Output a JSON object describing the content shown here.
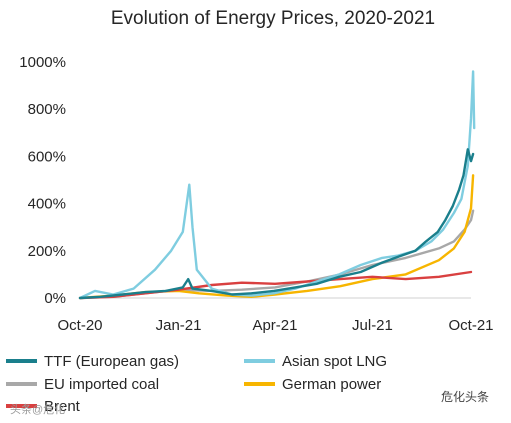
{
  "chart_data": {
    "type": "line",
    "title": "Evolution of Energy Prices, 2020-2021",
    "xlabel": "",
    "ylabel": "",
    "x_ticks": [
      "Oct-20",
      "Jan-21",
      "Apr-21",
      "Jul-21",
      "Oct-21"
    ],
    "y_ticks": [
      "0%",
      "200%",
      "400%",
      "600%",
      "800%",
      "1000%"
    ],
    "ylim": [
      0,
      1000
    ],
    "grid": false,
    "legend_position": "bottom",
    "series": [
      {
        "name": "TTF (European gas)",
        "color": "#1a7f8c",
        "points": [
          [
            "2020-10-01",
            0
          ],
          [
            "2020-10-20",
            5
          ],
          [
            "2020-11-10",
            15
          ],
          [
            "2020-12-01",
            25
          ],
          [
            "2020-12-20",
            30
          ],
          [
            "2021-01-05",
            45
          ],
          [
            "2021-01-10",
            80
          ],
          [
            "2021-01-14",
            40
          ],
          [
            "2021-02-01",
            30
          ],
          [
            "2021-02-20",
            15
          ],
          [
            "2021-03-10",
            20
          ],
          [
            "2021-03-31",
            30
          ],
          [
            "2021-04-20",
            45
          ],
          [
            "2021-05-10",
            60
          ],
          [
            "2021-05-31",
            90
          ],
          [
            "2021-06-20",
            110
          ],
          [
            "2021-07-10",
            150
          ],
          [
            "2021-07-25",
            175
          ],
          [
            "2021-08-10",
            200
          ],
          [
            "2021-08-20",
            240
          ],
          [
            "2021-08-31",
            280
          ],
          [
            "2021-09-07",
            330
          ],
          [
            "2021-09-14",
            390
          ],
          [
            "2021-09-20",
            460
          ],
          [
            "2021-09-24",
            520
          ],
          [
            "2021-09-28",
            630
          ],
          [
            "2021-10-01",
            580
          ],
          [
            "2021-10-03",
            610
          ]
        ]
      },
      {
        "name": "Asian spot LNG",
        "color": "#7fcde0",
        "points": [
          [
            "2020-10-01",
            0
          ],
          [
            "2020-10-15",
            30
          ],
          [
            "2020-11-01",
            15
          ],
          [
            "2020-11-20",
            40
          ],
          [
            "2020-12-10",
            120
          ],
          [
            "2020-12-25",
            200
          ],
          [
            "2021-01-05",
            280
          ],
          [
            "2021-01-11",
            480
          ],
          [
            "2021-01-14",
            300
          ],
          [
            "2021-01-18",
            120
          ],
          [
            "2021-02-01",
            40
          ],
          [
            "2021-02-20",
            15
          ],
          [
            "2021-03-10",
            10
          ],
          [
            "2021-03-31",
            20
          ],
          [
            "2021-04-20",
            40
          ],
          [
            "2021-05-10",
            70
          ],
          [
            "2021-05-31",
            100
          ],
          [
            "2021-06-20",
            140
          ],
          [
            "2021-07-10",
            170
          ],
          [
            "2021-07-25",
            180
          ],
          [
            "2021-08-10",
            200
          ],
          [
            "2021-08-25",
            240
          ],
          [
            "2021-09-05",
            290
          ],
          [
            "2021-09-15",
            360
          ],
          [
            "2021-09-22",
            420
          ],
          [
            "2021-09-28",
            560
          ],
          [
            "2021-10-01",
            760
          ],
          [
            "2021-10-03",
            960
          ],
          [
            "2021-10-04",
            720
          ]
        ]
      },
      {
        "name": "EU imported coal",
        "color": "#a8a8a8",
        "points": [
          [
            "2020-10-01",
            0
          ],
          [
            "2020-11-01",
            5
          ],
          [
            "2020-12-01",
            20
          ],
          [
            "2021-01-01",
            35
          ],
          [
            "2021-02-01",
            30
          ],
          [
            "2021-03-01",
            35
          ],
          [
            "2021-04-01",
            45
          ],
          [
            "2021-05-01",
            70
          ],
          [
            "2021-06-01",
            100
          ],
          [
            "2021-07-01",
            140
          ],
          [
            "2021-08-01",
            170
          ],
          [
            "2021-09-01",
            210
          ],
          [
            "2021-09-15",
            240
          ],
          [
            "2021-09-25",
            290
          ],
          [
            "2021-10-01",
            330
          ],
          [
            "2021-10-03",
            370
          ]
        ]
      },
      {
        "name": "German power",
        "color": "#f7b500",
        "points": [
          [
            "2020-10-01",
            0
          ],
          [
            "2020-11-01",
            10
          ],
          [
            "2020-12-01",
            25
          ],
          [
            "2021-01-01",
            30
          ],
          [
            "2021-01-20",
            20
          ],
          [
            "2021-02-15",
            10
          ],
          [
            "2021-03-10",
            5
          ],
          [
            "2021-04-01",
            15
          ],
          [
            "2021-05-01",
            30
          ],
          [
            "2021-06-01",
            50
          ],
          [
            "2021-07-01",
            80
          ],
          [
            "2021-08-01",
            100
          ],
          [
            "2021-09-01",
            160
          ],
          [
            "2021-09-15",
            210
          ],
          [
            "2021-09-25",
            280
          ],
          [
            "2021-10-01",
            380
          ],
          [
            "2021-10-03",
            520
          ]
        ]
      },
      {
        "name": "Brent",
        "color": "#d94040",
        "points": [
          [
            "2020-10-01",
            0
          ],
          [
            "2020-11-01",
            5
          ],
          [
            "2020-12-01",
            20
          ],
          [
            "2021-01-01",
            35
          ],
          [
            "2021-02-01",
            55
          ],
          [
            "2021-03-01",
            65
          ],
          [
            "2021-04-01",
            60
          ],
          [
            "2021-05-01",
            70
          ],
          [
            "2021-06-01",
            80
          ],
          [
            "2021-07-01",
            90
          ],
          [
            "2021-08-01",
            80
          ],
          [
            "2021-09-01",
            90
          ],
          [
            "2021-10-01",
            110
          ]
        ]
      }
    ]
  },
  "watermark_left": "头条@危化",
  "watermark_right": "危化头条"
}
